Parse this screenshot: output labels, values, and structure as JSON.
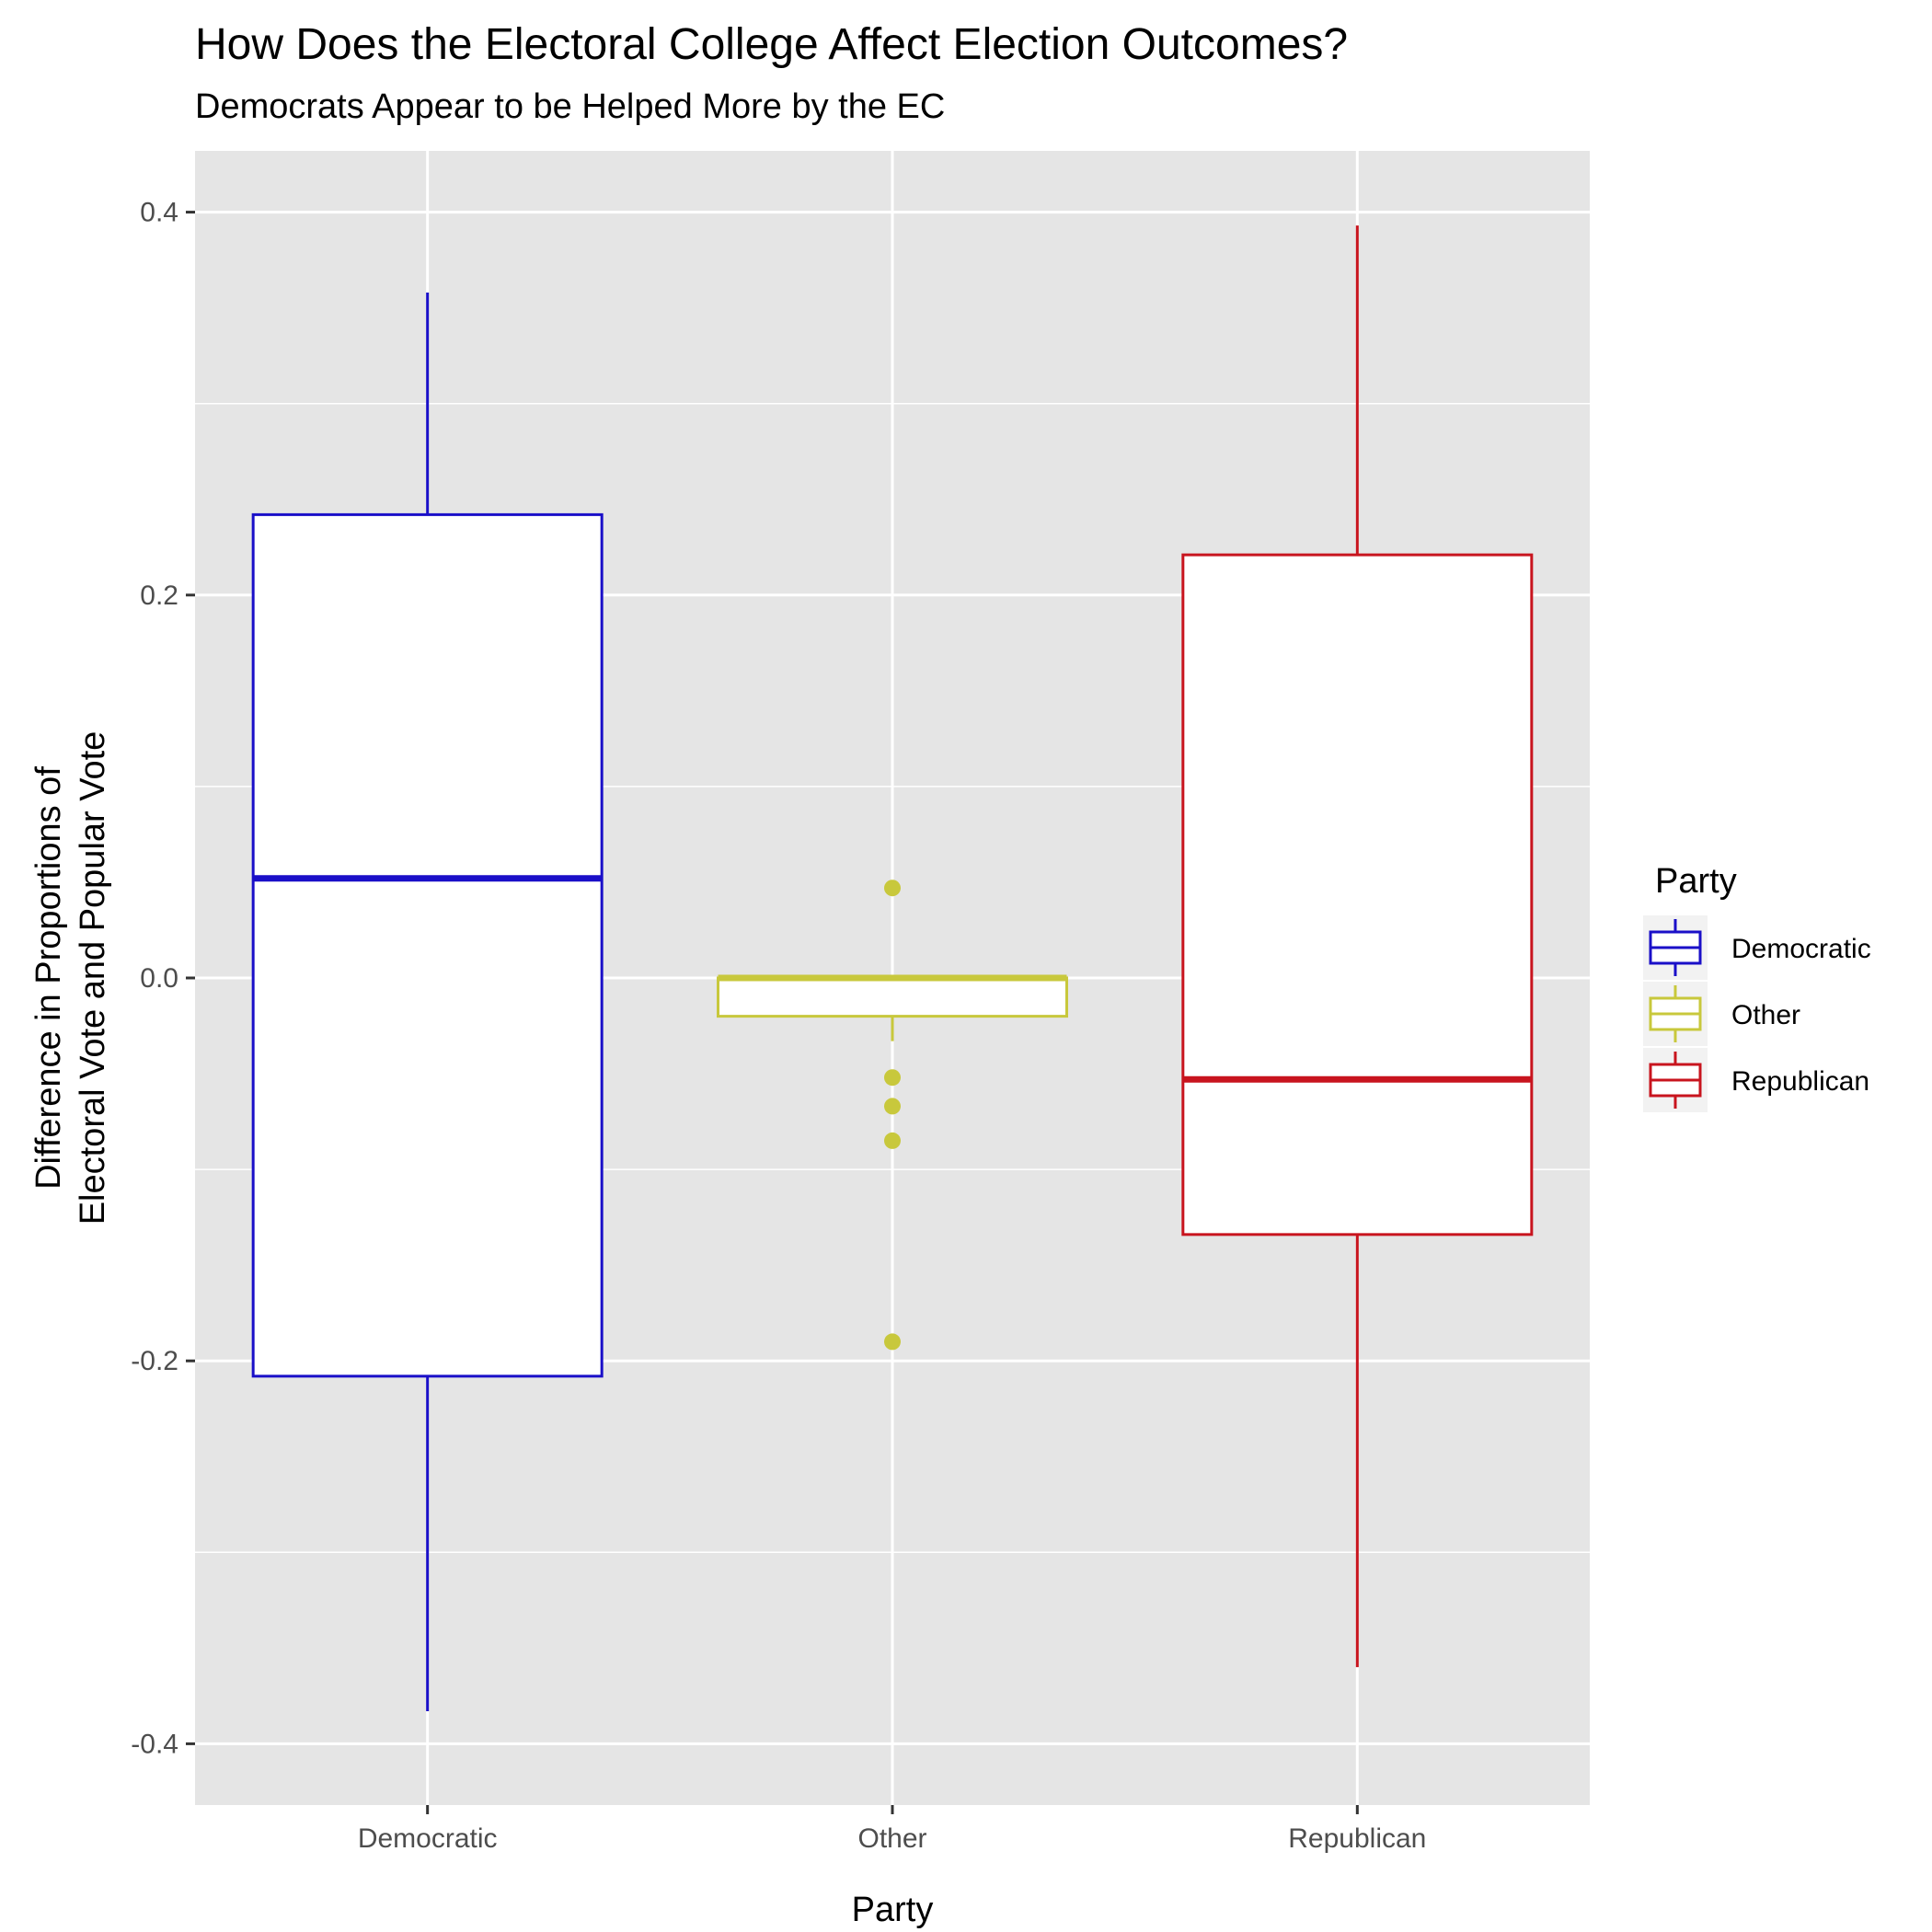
{
  "chart_data": {
    "type": "boxplot",
    "title": "How Does the Electoral College Affect Election Outcomes?",
    "subtitle": "Democrats Appear to be Helped More by the EC",
    "xlabel": "Party",
    "ylabel_lines": [
      "Difference in Proportions of",
      "Electoral Vote and Popular Vote"
    ],
    "ylim": [
      -0.432,
      0.432
    ],
    "y_ticks": [
      {
        "value": -0.4,
        "label": "-0.4"
      },
      {
        "value": -0.2,
        "label": "-0.2"
      },
      {
        "value": 0.0,
        "label": "0.0"
      },
      {
        "value": 0.2,
        "label": "0.2"
      },
      {
        "value": 0.4,
        "label": "0.4"
      }
    ],
    "y_minor_ticks": [
      -0.3,
      -0.1,
      0.1,
      0.3
    ],
    "categories": [
      "Democratic",
      "Other",
      "Republican"
    ],
    "grid": true,
    "legend": {
      "title": "Party",
      "position": "right"
    },
    "series": [
      {
        "name": "Democratic",
        "color": "#1a0fc8",
        "whisker_low": -0.383,
        "q1": -0.208,
        "median": 0.052,
        "q3": 0.242,
        "whisker_high": 0.358,
        "outliers": []
      },
      {
        "name": "Other",
        "color": "#c8c83c",
        "whisker_low": -0.033,
        "q1": -0.02,
        "median": 0.0,
        "q3": 0.0,
        "whisker_high": 0.0,
        "outliers": [
          0.047,
          -0.052,
          -0.067,
          -0.085,
          -0.19
        ]
      },
      {
        "name": "Republican",
        "color": "#c8141e",
        "whisker_low": -0.36,
        "q1": -0.134,
        "median": -0.053,
        "q3": 0.221,
        "whisker_high": 0.393,
        "outliers": []
      }
    ]
  }
}
